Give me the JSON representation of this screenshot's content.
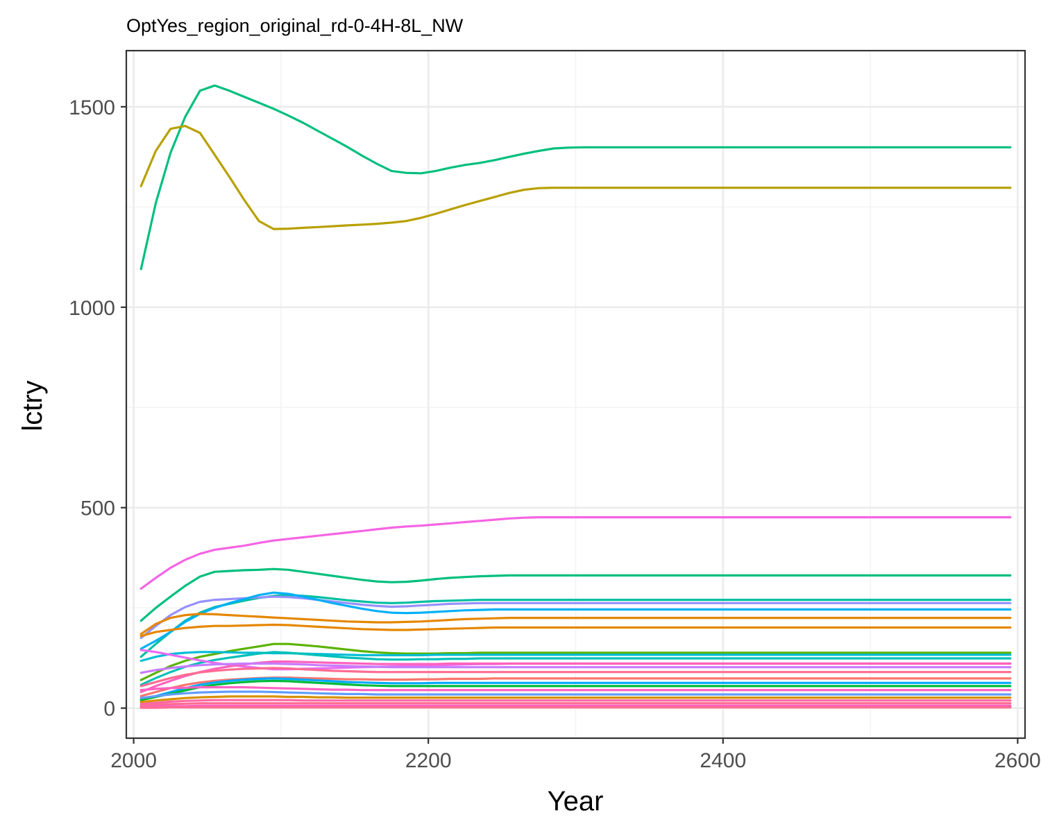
{
  "chart_data": {
    "type": "line",
    "title": "OptYes_region_original_rd-0-4H-8L_NW",
    "xlabel": "Year",
    "ylabel": "lctry",
    "xlim": [
      1995,
      2605
    ],
    "ylim": [
      -75,
      1640
    ],
    "x_ticks": [
      2000,
      2200,
      2400,
      2600
    ],
    "y_ticks": [
      0,
      500,
      1000,
      1500
    ],
    "x_tick_labels": [
      "2000",
      "2200",
      "2400",
      "2600"
    ],
    "y_tick_labels": [
      "0",
      "500",
      "1000",
      "1500"
    ],
    "grid": true,
    "legend": "none",
    "x": [
      2005,
      2015,
      2025,
      2035,
      2045,
      2055,
      2065,
      2075,
      2085,
      2095,
      2105,
      2115,
      2125,
      2135,
      2145,
      2155,
      2165,
      2175,
      2185,
      2195,
      2205,
      2215,
      2225,
      2235,
      2245,
      2255,
      2265,
      2275,
      2285,
      2295,
      2305,
      2595
    ],
    "series": [
      {
        "color": "#00BF7D",
        "values": [
          1095,
          1260,
          1385,
          1475,
          1540,
          1553,
          1540,
          1525,
          1510,
          1495,
          1478,
          1460,
          1440,
          1420,
          1400,
          1378,
          1358,
          1340,
          1335,
          1334,
          1340,
          1348,
          1355,
          1360,
          1367,
          1375,
          1383,
          1390,
          1396,
          1398,
          1399,
          1399
        ]
      },
      {
        "color": "#B8A000",
        "values": [
          1302,
          1390,
          1445,
          1452,
          1435,
          1380,
          1325,
          1268,
          1215,
          1195,
          1196,
          1198,
          1200,
          1202,
          1204,
          1206,
          1208,
          1211,
          1215,
          1223,
          1233,
          1244,
          1255,
          1265,
          1275,
          1285,
          1293,
          1297,
          1298,
          1298,
          1298,
          1298
        ]
      },
      {
        "color": "#F564E3",
        "values": [
          298,
          325,
          350,
          370,
          385,
          395,
          400,
          405,
          412,
          418,
          422,
          426,
          430,
          434,
          438,
          442,
          446,
          450,
          453,
          455,
          458,
          461,
          464,
          467,
          470,
          473,
          475,
          476,
          476,
          476,
          476,
          476
        ]
      },
      {
        "color": "#00BF7D",
        "values": [
          218,
          250,
          278,
          305,
          328,
          340,
          342,
          344,
          345,
          347,
          345,
          340,
          335,
          330,
          325,
          320,
          316,
          314,
          315,
          318,
          322,
          325,
          327,
          329,
          330,
          331,
          331,
          331,
          331,
          331,
          331,
          331
        ]
      },
      {
        "color": "#00BFA0",
        "values": [
          128,
          160,
          190,
          218,
          238,
          252,
          260,
          268,
          275,
          280,
          282,
          280,
          277,
          273,
          269,
          266,
          263,
          262,
          263,
          265,
          267,
          268,
          269,
          270,
          270,
          270,
          270,
          270,
          270,
          270,
          270,
          270
        ]
      },
      {
        "color": "#9590FF",
        "values": [
          175,
          205,
          232,
          252,
          265,
          270,
          272,
          274,
          276,
          278,
          277,
          274,
          270,
          266,
          262,
          258,
          255,
          253,
          254,
          256,
          258,
          260,
          261,
          262,
          262,
          262,
          262,
          262,
          262,
          262,
          262,
          262
        ]
      },
      {
        "color": "#00B0F6",
        "values": [
          148,
          168,
          190,
          215,
          235,
          250,
          262,
          272,
          282,
          288,
          285,
          278,
          270,
          262,
          255,
          248,
          242,
          238,
          237,
          238,
          240,
          242,
          244,
          245,
          246,
          246,
          246,
          246,
          246,
          246,
          246,
          246
        ]
      },
      {
        "color": "#E58700",
        "values": [
          185,
          210,
          225,
          232,
          235,
          234,
          232,
          230,
          228,
          226,
          224,
          222,
          220,
          218,
          216,
          215,
          214,
          214,
          215,
          216,
          218,
          220,
          222,
          223,
          224,
          225,
          225,
          225,
          225,
          225,
          225,
          225
        ]
      },
      {
        "color": "#E58700",
        "values": [
          180,
          190,
          195,
          200,
          203,
          205,
          205,
          206,
          207,
          208,
          207,
          205,
          203,
          201,
          199,
          197,
          196,
          195,
          195,
          196,
          197,
          198,
          199,
          200,
          201,
          201,
          201,
          201,
          201,
          201,
          201,
          201
        ]
      },
      {
        "color": "#5BB300",
        "values": [
          70,
          88,
          105,
          118,
          128,
          135,
          142,
          148,
          154,
          160,
          160,
          157,
          154,
          150,
          146,
          142,
          139,
          137,
          136,
          136,
          136,
          137,
          137,
          138,
          138,
          138,
          138,
          138,
          138,
          138,
          138,
          138
        ]
      },
      {
        "color": "#00BCD8",
        "values": [
          118,
          128,
          135,
          138,
          140,
          140,
          139,
          138,
          138,
          137,
          137,
          136,
          135,
          134,
          133,
          132,
          132,
          132,
          132,
          132,
          133,
          133,
          133,
          133,
          133,
          133,
          133,
          133,
          133,
          133,
          133,
          133
        ]
      },
      {
        "color": "#00C0B8",
        "values": [
          58,
          75,
          90,
          103,
          113,
          120,
          126,
          131,
          136,
          140,
          138,
          135,
          132,
          129,
          126,
          124,
          122,
          121,
          121,
          122,
          122,
          123,
          123,
          124,
          124,
          124,
          124,
          124,
          124,
          124,
          124,
          124
        ]
      },
      {
        "color": "#E76BF3",
        "values": [
          145,
          140,
          133,
          126,
          119,
          113,
          108,
          104,
          100,
          97,
          97,
          98,
          99,
          100,
          101,
          102,
          103,
          104,
          105,
          106,
          107,
          108,
          109,
          110,
          110,
          111,
          111,
          111,
          111,
          111,
          111,
          111
        ]
      },
      {
        "color": "#FF62BC",
        "values": [
          40,
          55,
          68,
          80,
          90,
          98,
          104,
          109,
          113,
          116,
          116,
          115,
          114,
          113,
          112,
          111,
          110,
          110,
          110,
          110,
          110,
          111,
          111,
          111,
          111,
          111,
          111,
          111,
          111,
          111,
          111,
          111
        ]
      },
      {
        "color": "#C77CFF",
        "values": [
          88,
          95,
          100,
          104,
          107,
          109,
          110,
          111,
          111,
          111,
          110,
          109,
          107,
          106,
          105,
          104,
          103,
          102,
          102,
          102,
          102,
          102,
          102,
          102,
          102,
          102,
          102,
          102,
          102,
          102,
          102,
          102
        ]
      },
      {
        "color": "#FF6C91",
        "values": [
          55,
          65,
          75,
          83,
          89,
          93,
          96,
          98,
          99,
          100,
          99,
          97,
          95,
          93,
          92,
          91,
          90,
          90,
          90,
          90,
          90,
          90,
          90,
          90,
          90,
          90,
          90,
          90,
          90,
          90,
          90,
          90
        ]
      },
      {
        "color": "#F8766D",
        "values": [
          30,
          40,
          50,
          58,
          64,
          68,
          71,
          73,
          75,
          76,
          76,
          75,
          74,
          73,
          72,
          72,
          71,
          71,
          71,
          72,
          72,
          73,
          73,
          73,
          74,
          74,
          74,
          74,
          74,
          74,
          74,
          74
        ]
      },
      {
        "color": "#00A9FF",
        "values": [
          22,
          30,
          40,
          50,
          58,
          64,
          68,
          71,
          73,
          74,
          73,
          71,
          69,
          67,
          65,
          64,
          63,
          62,
          62,
          62,
          63,
          63,
          63,
          63,
          63,
          63,
          63,
          63,
          63,
          63,
          63,
          63
        ]
      },
      {
        "color": "#00BA38",
        "values": [
          20,
          28,
          36,
          44,
          52,
          58,
          62,
          65,
          67,
          68,
          67,
          65,
          63,
          61,
          59,
          57,
          56,
          55,
          55,
          55,
          55,
          55,
          55,
          55,
          55,
          55,
          55,
          55,
          55,
          55,
          55,
          55
        ]
      },
      {
        "color": "#FF61C3",
        "values": [
          45,
          48,
          50,
          51,
          52,
          52,
          52,
          52,
          51,
          50,
          49,
          48,
          47,
          46,
          46,
          45,
          45,
          45,
          45,
          45,
          45,
          45,
          45,
          45,
          45,
          45,
          45,
          45,
          45,
          45,
          45,
          45
        ]
      },
      {
        "color": "#619CFF",
        "values": [
          25,
          30,
          34,
          37,
          39,
          40,
          41,
          41,
          41,
          40,
          39,
          38,
          37,
          36,
          35,
          35,
          34,
          34,
          34,
          34,
          34,
          34,
          34,
          34,
          34,
          34,
          34,
          34,
          34,
          34,
          34,
          34
        ]
      },
      {
        "color": "#D89000",
        "values": [
          15,
          19,
          22,
          25,
          27,
          28,
          29,
          29,
          29,
          29,
          28,
          28,
          27,
          27,
          26,
          26,
          26,
          26,
          26,
          26,
          26,
          26,
          26,
          26,
          26,
          26,
          26,
          26,
          26,
          26,
          26,
          26
        ]
      },
      {
        "color": "#FF67A4",
        "values": [
          10,
          13,
          16,
          18,
          19,
          20,
          20,
          20,
          20,
          20,
          20,
          19,
          19,
          19,
          19,
          19,
          19,
          19,
          19,
          19,
          19,
          19,
          19,
          19,
          19,
          19,
          19,
          19,
          19,
          19,
          19,
          19
        ]
      },
      {
        "color": "#FF6C91",
        "values": [
          6,
          8,
          10,
          11,
          12,
          12,
          12,
          12,
          12,
          12,
          12,
          12,
          12,
          12,
          12,
          12,
          12,
          12,
          12,
          12,
          12,
          12,
          12,
          12,
          12,
          12,
          12,
          12,
          12,
          12,
          12,
          12
        ]
      },
      {
        "color": "#FF61C3",
        "values": [
          3,
          4,
          5,
          5,
          6,
          6,
          6,
          6,
          6,
          6,
          6,
          6,
          6,
          6,
          6,
          6,
          6,
          6,
          6,
          6,
          6,
          6,
          6,
          6,
          6,
          6,
          6,
          6,
          6,
          6,
          6,
          6
        ]
      },
      {
        "color": "#FF6C91",
        "values": [
          1,
          1,
          2,
          2,
          2,
          2,
          2,
          2,
          2,
          2,
          2,
          2,
          2,
          2,
          2,
          2,
          2,
          2,
          2,
          2,
          2,
          2,
          2,
          2,
          2,
          2,
          2,
          2,
          2,
          2,
          2,
          2
        ]
      }
    ]
  }
}
